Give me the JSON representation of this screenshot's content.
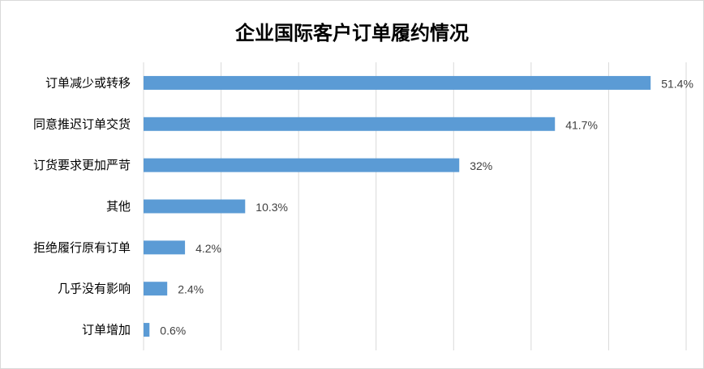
{
  "chart_data": {
    "type": "bar",
    "orientation": "horizontal",
    "title": "企业国际客户订单履约情况",
    "categories": [
      "订单减少或转移",
      "同意推迟订单交货",
      "订货要求更加严苛",
      "其他",
      "拒绝履行原有订单",
      "几乎没有影响",
      "订单增加"
    ],
    "values": [
      51.4,
      41.7,
      32,
      10.3,
      4.2,
      2.4,
      0.6
    ],
    "value_labels": [
      "51.4%",
      "41.7%",
      "32%",
      "10.3%",
      "4.2%",
      "2.4%",
      "0.6%"
    ],
    "xlim": [
      0,
      55
    ],
    "grid": true,
    "bar_color": "#5b9bd5"
  }
}
